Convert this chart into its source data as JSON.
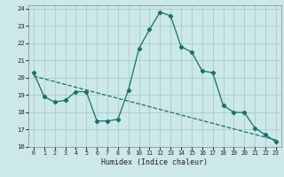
{
  "xlabel": "Humidex (Indice chaleur)",
  "background_color": "#cce8e8",
  "grid_color": "#aacccc",
  "line_color": "#1a6e6e",
  "xlim": [
    -0.5,
    23.5
  ],
  "ylim": [
    16,
    24.2
  ],
  "yticks": [
    16,
    17,
    18,
    19,
    20,
    21,
    22,
    23,
    24
  ],
  "xticks": [
    0,
    1,
    2,
    3,
    4,
    5,
    6,
    7,
    8,
    9,
    10,
    11,
    12,
    13,
    14,
    15,
    16,
    17,
    18,
    19,
    20,
    21,
    22,
    23
  ],
  "line1_x": [
    0,
    1,
    2,
    3,
    4,
    5,
    6,
    7,
    8,
    9,
    10,
    11,
    12,
    13,
    14,
    15,
    16,
    17,
    18,
    19,
    20,
    21,
    22,
    23
  ],
  "line1_y": [
    20.3,
    18.9,
    18.6,
    18.7,
    19.2,
    19.2,
    17.5,
    17.5,
    17.6,
    19.3,
    21.7,
    22.8,
    23.8,
    23.6,
    21.8,
    21.5,
    20.4,
    20.3,
    18.4,
    18.0,
    18.0,
    17.1,
    16.7,
    16.3
  ],
  "line2_x": [
    0,
    23
  ],
  "line2_y": [
    20.1,
    16.4
  ]
}
